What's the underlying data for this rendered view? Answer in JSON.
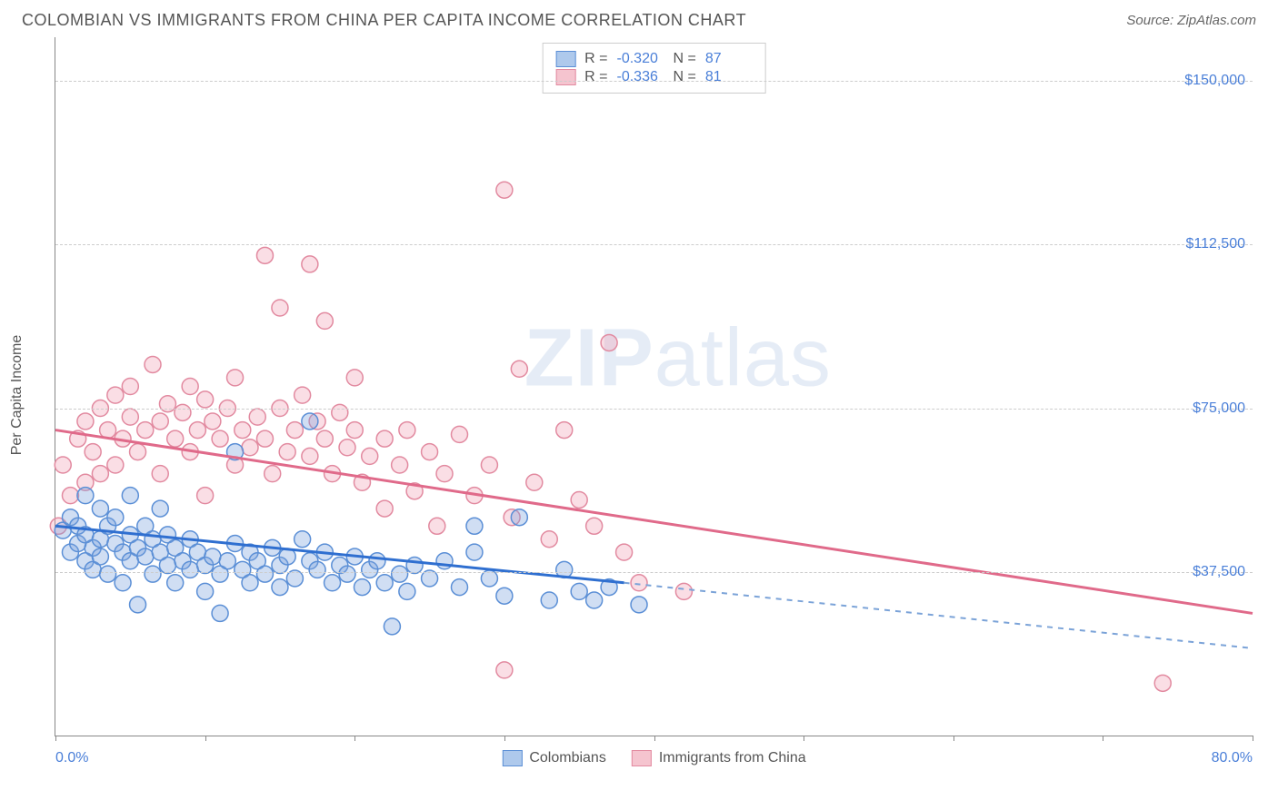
{
  "title": "COLOMBIAN VS IMMIGRANTS FROM CHINA PER CAPITA INCOME CORRELATION CHART",
  "source_label": "Source: ",
  "source_name": "ZipAtlas.com",
  "y_axis_label": "Per Capita Income",
  "watermark_bold": "ZIP",
  "watermark_rest": "atlas",
  "chart": {
    "type": "scatter",
    "xlim": [
      0,
      80
    ],
    "ylim": [
      0,
      160000
    ],
    "x_start_label": "0.0%",
    "x_end_label": "80.0%",
    "x_ticks": [
      0,
      10,
      20,
      30,
      40,
      50,
      60,
      70,
      80
    ],
    "y_gridlines": [
      37500,
      75000,
      112500,
      150000
    ],
    "y_tick_labels": [
      "$37,500",
      "$75,000",
      "$112,500",
      "$150,000"
    ],
    "background_color": "#ffffff",
    "grid_color": "#cccccc",
    "axis_color": "#888888",
    "tick_label_color": "#4a7fd8",
    "series": [
      {
        "name": "Colombians",
        "label": "Colombians",
        "fill": "rgba(120,160,220,0.35)",
        "stroke": "#5b8fd6",
        "swatch_fill": "#aec9ec",
        "swatch_border": "#5b8fd6",
        "trend_color": "#2f6fd0",
        "trend_dash_color": "#7ba3d8",
        "R": "-0.320",
        "N": "87",
        "marker_radius": 9,
        "trend": {
          "x1": 0,
          "y1": 48000,
          "x2_solid": 38,
          "y2_solid": 35000,
          "x2_dash": 80,
          "y2_dash": 20000
        },
        "points": [
          [
            0.5,
            47000
          ],
          [
            1,
            50000
          ],
          [
            1,
            42000
          ],
          [
            1.5,
            48000
          ],
          [
            1.5,
            44000
          ],
          [
            2,
            55000
          ],
          [
            2,
            46000
          ],
          [
            2,
            40000
          ],
          [
            2.5,
            43000
          ],
          [
            2.5,
            38000
          ],
          [
            3,
            52000
          ],
          [
            3,
            45000
          ],
          [
            3,
            41000
          ],
          [
            3.5,
            48000
          ],
          [
            3.5,
            37000
          ],
          [
            4,
            44000
          ],
          [
            4,
            50000
          ],
          [
            4.5,
            42000
          ],
          [
            4.5,
            35000
          ],
          [
            5,
            55000
          ],
          [
            5,
            46000
          ],
          [
            5,
            40000
          ],
          [
            5.5,
            43000
          ],
          [
            5.5,
            30000
          ],
          [
            6,
            48000
          ],
          [
            6,
            41000
          ],
          [
            6.5,
            37000
          ],
          [
            6.5,
            45000
          ],
          [
            7,
            52000
          ],
          [
            7,
            42000
          ],
          [
            7.5,
            39000
          ],
          [
            7.5,
            46000
          ],
          [
            8,
            43000
          ],
          [
            8,
            35000
          ],
          [
            8.5,
            40000
          ],
          [
            9,
            45000
          ],
          [
            9,
            38000
          ],
          [
            9.5,
            42000
          ],
          [
            10,
            39000
          ],
          [
            10,
            33000
          ],
          [
            10.5,
            41000
          ],
          [
            11,
            37000
          ],
          [
            11,
            28000
          ],
          [
            11.5,
            40000
          ],
          [
            12,
            65000
          ],
          [
            12,
            44000
          ],
          [
            12.5,
            38000
          ],
          [
            13,
            42000
          ],
          [
            13,
            35000
          ],
          [
            13.5,
            40000
          ],
          [
            14,
            37000
          ],
          [
            14.5,
            43000
          ],
          [
            15,
            39000
          ],
          [
            15,
            34000
          ],
          [
            15.5,
            41000
          ],
          [
            16,
            36000
          ],
          [
            16.5,
            45000
          ],
          [
            17,
            72000
          ],
          [
            17,
            40000
          ],
          [
            17.5,
            38000
          ],
          [
            18,
            42000
          ],
          [
            18.5,
            35000
          ],
          [
            19,
            39000
          ],
          [
            19.5,
            37000
          ],
          [
            20,
            41000
          ],
          [
            20.5,
            34000
          ],
          [
            21,
            38000
          ],
          [
            21.5,
            40000
          ],
          [
            22,
            35000
          ],
          [
            22.5,
            25000
          ],
          [
            23,
            37000
          ],
          [
            23.5,
            33000
          ],
          [
            24,
            39000
          ],
          [
            25,
            36000
          ],
          [
            26,
            40000
          ],
          [
            27,
            34000
          ],
          [
            28,
            42000
          ],
          [
            28,
            48000
          ],
          [
            29,
            36000
          ],
          [
            30,
            32000
          ],
          [
            31,
            50000
          ],
          [
            33,
            31000
          ],
          [
            34,
            38000
          ],
          [
            35,
            33000
          ],
          [
            36,
            31000
          ],
          [
            37,
            34000
          ],
          [
            39,
            30000
          ]
        ]
      },
      {
        "name": "Immigrants from China",
        "label": "Immigrants from China",
        "fill": "rgba(240,160,180,0.35)",
        "stroke": "#e28aa0",
        "swatch_fill": "#f5c4cf",
        "swatch_border": "#e28aa0",
        "trend_color": "#e06a8a",
        "R": "-0.336",
        "N": "81",
        "marker_radius": 9,
        "trend": {
          "x1": 0,
          "y1": 70000,
          "x2_solid": 80,
          "y2_solid": 28000
        },
        "points": [
          [
            0.5,
            62000
          ],
          [
            1,
            55000
          ],
          [
            1.5,
            68000
          ],
          [
            2,
            72000
          ],
          [
            2,
            58000
          ],
          [
            2.5,
            65000
          ],
          [
            3,
            75000
          ],
          [
            3,
            60000
          ],
          [
            3.5,
            70000
          ],
          [
            4,
            78000
          ],
          [
            4,
            62000
          ],
          [
            4.5,
            68000
          ],
          [
            5,
            73000
          ],
          [
            5,
            80000
          ],
          [
            5.5,
            65000
          ],
          [
            6,
            70000
          ],
          [
            6.5,
            85000
          ],
          [
            7,
            72000
          ],
          [
            7,
            60000
          ],
          [
            7.5,
            76000
          ],
          [
            8,
            68000
          ],
          [
            8.5,
            74000
          ],
          [
            9,
            80000
          ],
          [
            9,
            65000
          ],
          [
            9.5,
            70000
          ],
          [
            10,
            77000
          ],
          [
            10,
            55000
          ],
          [
            10.5,
            72000
          ],
          [
            11,
            68000
          ],
          [
            11.5,
            75000
          ],
          [
            12,
            82000
          ],
          [
            12,
            62000
          ],
          [
            12.5,
            70000
          ],
          [
            13,
            66000
          ],
          [
            13.5,
            73000
          ],
          [
            14,
            110000
          ],
          [
            14,
            68000
          ],
          [
            14.5,
            60000
          ],
          [
            15,
            75000
          ],
          [
            15,
            98000
          ],
          [
            15.5,
            65000
          ],
          [
            16,
            70000
          ],
          [
            16.5,
            78000
          ],
          [
            17,
            108000
          ],
          [
            17,
            64000
          ],
          [
            17.5,
            72000
          ],
          [
            18,
            68000
          ],
          [
            18,
            95000
          ],
          [
            18.5,
            60000
          ],
          [
            19,
            74000
          ],
          [
            19.5,
            66000
          ],
          [
            20,
            70000
          ],
          [
            20,
            82000
          ],
          [
            20.5,
            58000
          ],
          [
            21,
            64000
          ],
          [
            22,
            68000
          ],
          [
            22,
            52000
          ],
          [
            23,
            62000
          ],
          [
            23.5,
            70000
          ],
          [
            24,
            56000
          ],
          [
            25,
            65000
          ],
          [
            25.5,
            48000
          ],
          [
            26,
            60000
          ],
          [
            27,
            69000
          ],
          [
            28,
            55000
          ],
          [
            29,
            62000
          ],
          [
            30,
            125000
          ],
          [
            30.5,
            50000
          ],
          [
            31,
            84000
          ],
          [
            32,
            58000
          ],
          [
            33,
            45000
          ],
          [
            34,
            70000
          ],
          [
            35,
            54000
          ],
          [
            36,
            48000
          ],
          [
            37,
            90000
          ],
          [
            38,
            42000
          ],
          [
            39,
            35000
          ],
          [
            42,
            33000
          ],
          [
            30,
            15000
          ],
          [
            74,
            12000
          ],
          [
            0.2,
            48000
          ]
        ]
      }
    ],
    "legend_labels": {
      "R": "R =",
      "N": "N ="
    }
  }
}
